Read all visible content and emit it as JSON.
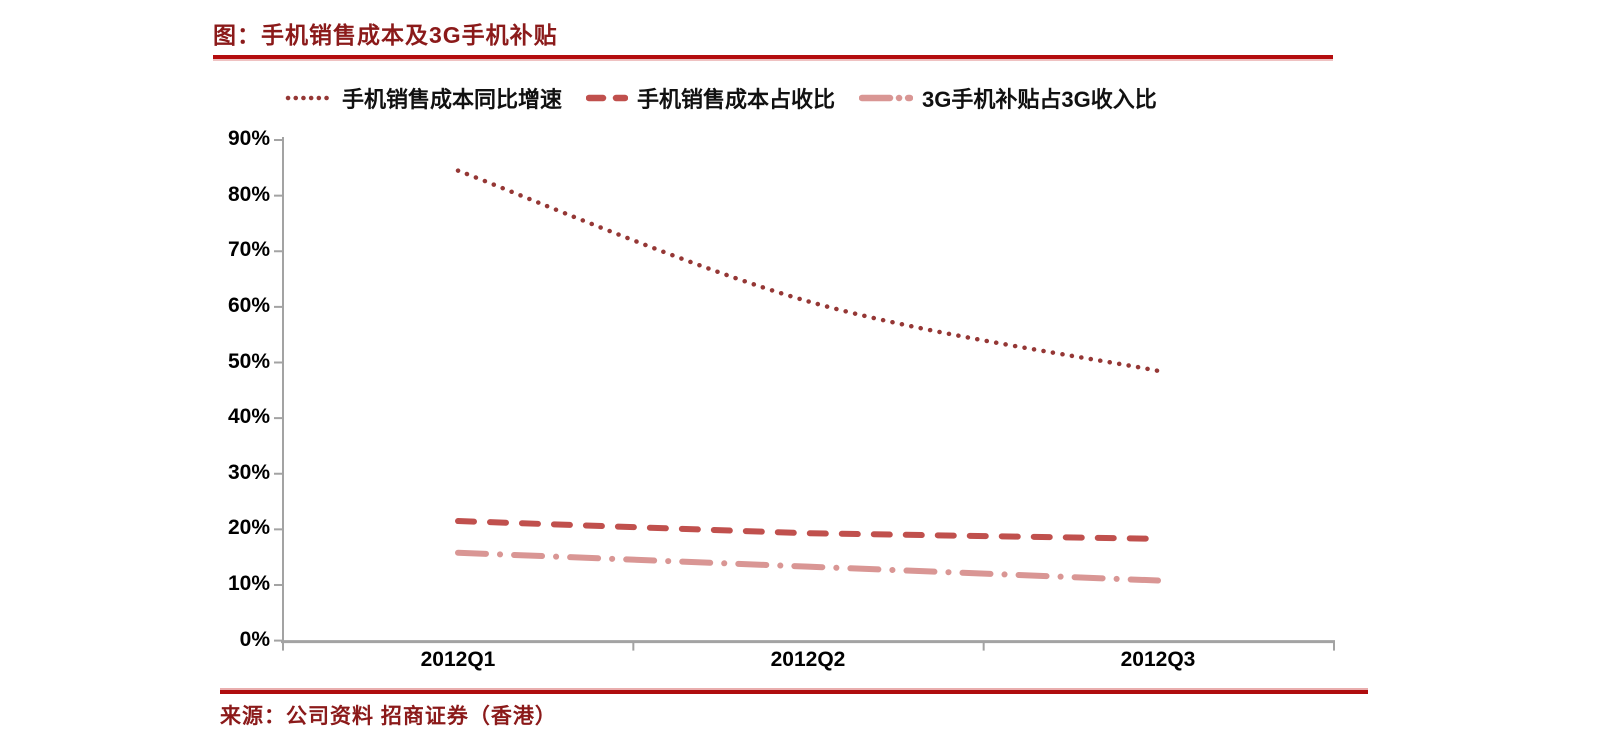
{
  "title": "图：手机销售成本及3G手机补贴",
  "source": "来源：公司资料 招商证券（香港）",
  "colors": {
    "title_text": "#8B1A1A",
    "rule_dark": "#B40D0E",
    "rule_light": "#EFC2C2",
    "axis": "#A3A3A3",
    "tick_label": "#000000",
    "series_dotted": "#953735",
    "series_dashed": "#C0504D",
    "series_dashdot": "#D99694"
  },
  "legend": [
    {
      "label": "手机销售成本同比增速",
      "style": "dotted",
      "color": "#953735"
    },
    {
      "label": "手机销售成本占收比",
      "style": "dashed",
      "color": "#C0504D"
    },
    {
      "label": "3G手机补贴占3G收入比",
      "style": "dashdot",
      "color": "#D99694"
    }
  ],
  "chart_data": {
    "type": "line",
    "categories": [
      "2012Q1",
      "2012Q2",
      "2012Q3"
    ],
    "series": [
      {
        "name": "手机销售成本同比增速",
        "values": [
          84.5,
          61.0,
          48.5
        ],
        "style": "dotted",
        "color": "#953735",
        "smooth": true
      },
      {
        "name": "手机销售成本占收比",
        "values": [
          21.5,
          19.3,
          18.3
        ],
        "style": "dashed",
        "color": "#C0504D",
        "smooth": false
      },
      {
        "name": "3G手机补贴占3G收入比",
        "values": [
          15.8,
          13.3,
          10.8
        ],
        "style": "dashdot",
        "color": "#D99694",
        "smooth": false
      }
    ],
    "xlabel": "",
    "ylabel": "",
    "ylim": [
      0,
      90
    ],
    "ytick_step": 10,
    "ytick_labels": [
      "0%",
      "10%",
      "20%",
      "30%",
      "40%",
      "50%",
      "60%",
      "70%",
      "80%",
      "90%"
    ],
    "grid": "off",
    "legend_position": "top"
  }
}
